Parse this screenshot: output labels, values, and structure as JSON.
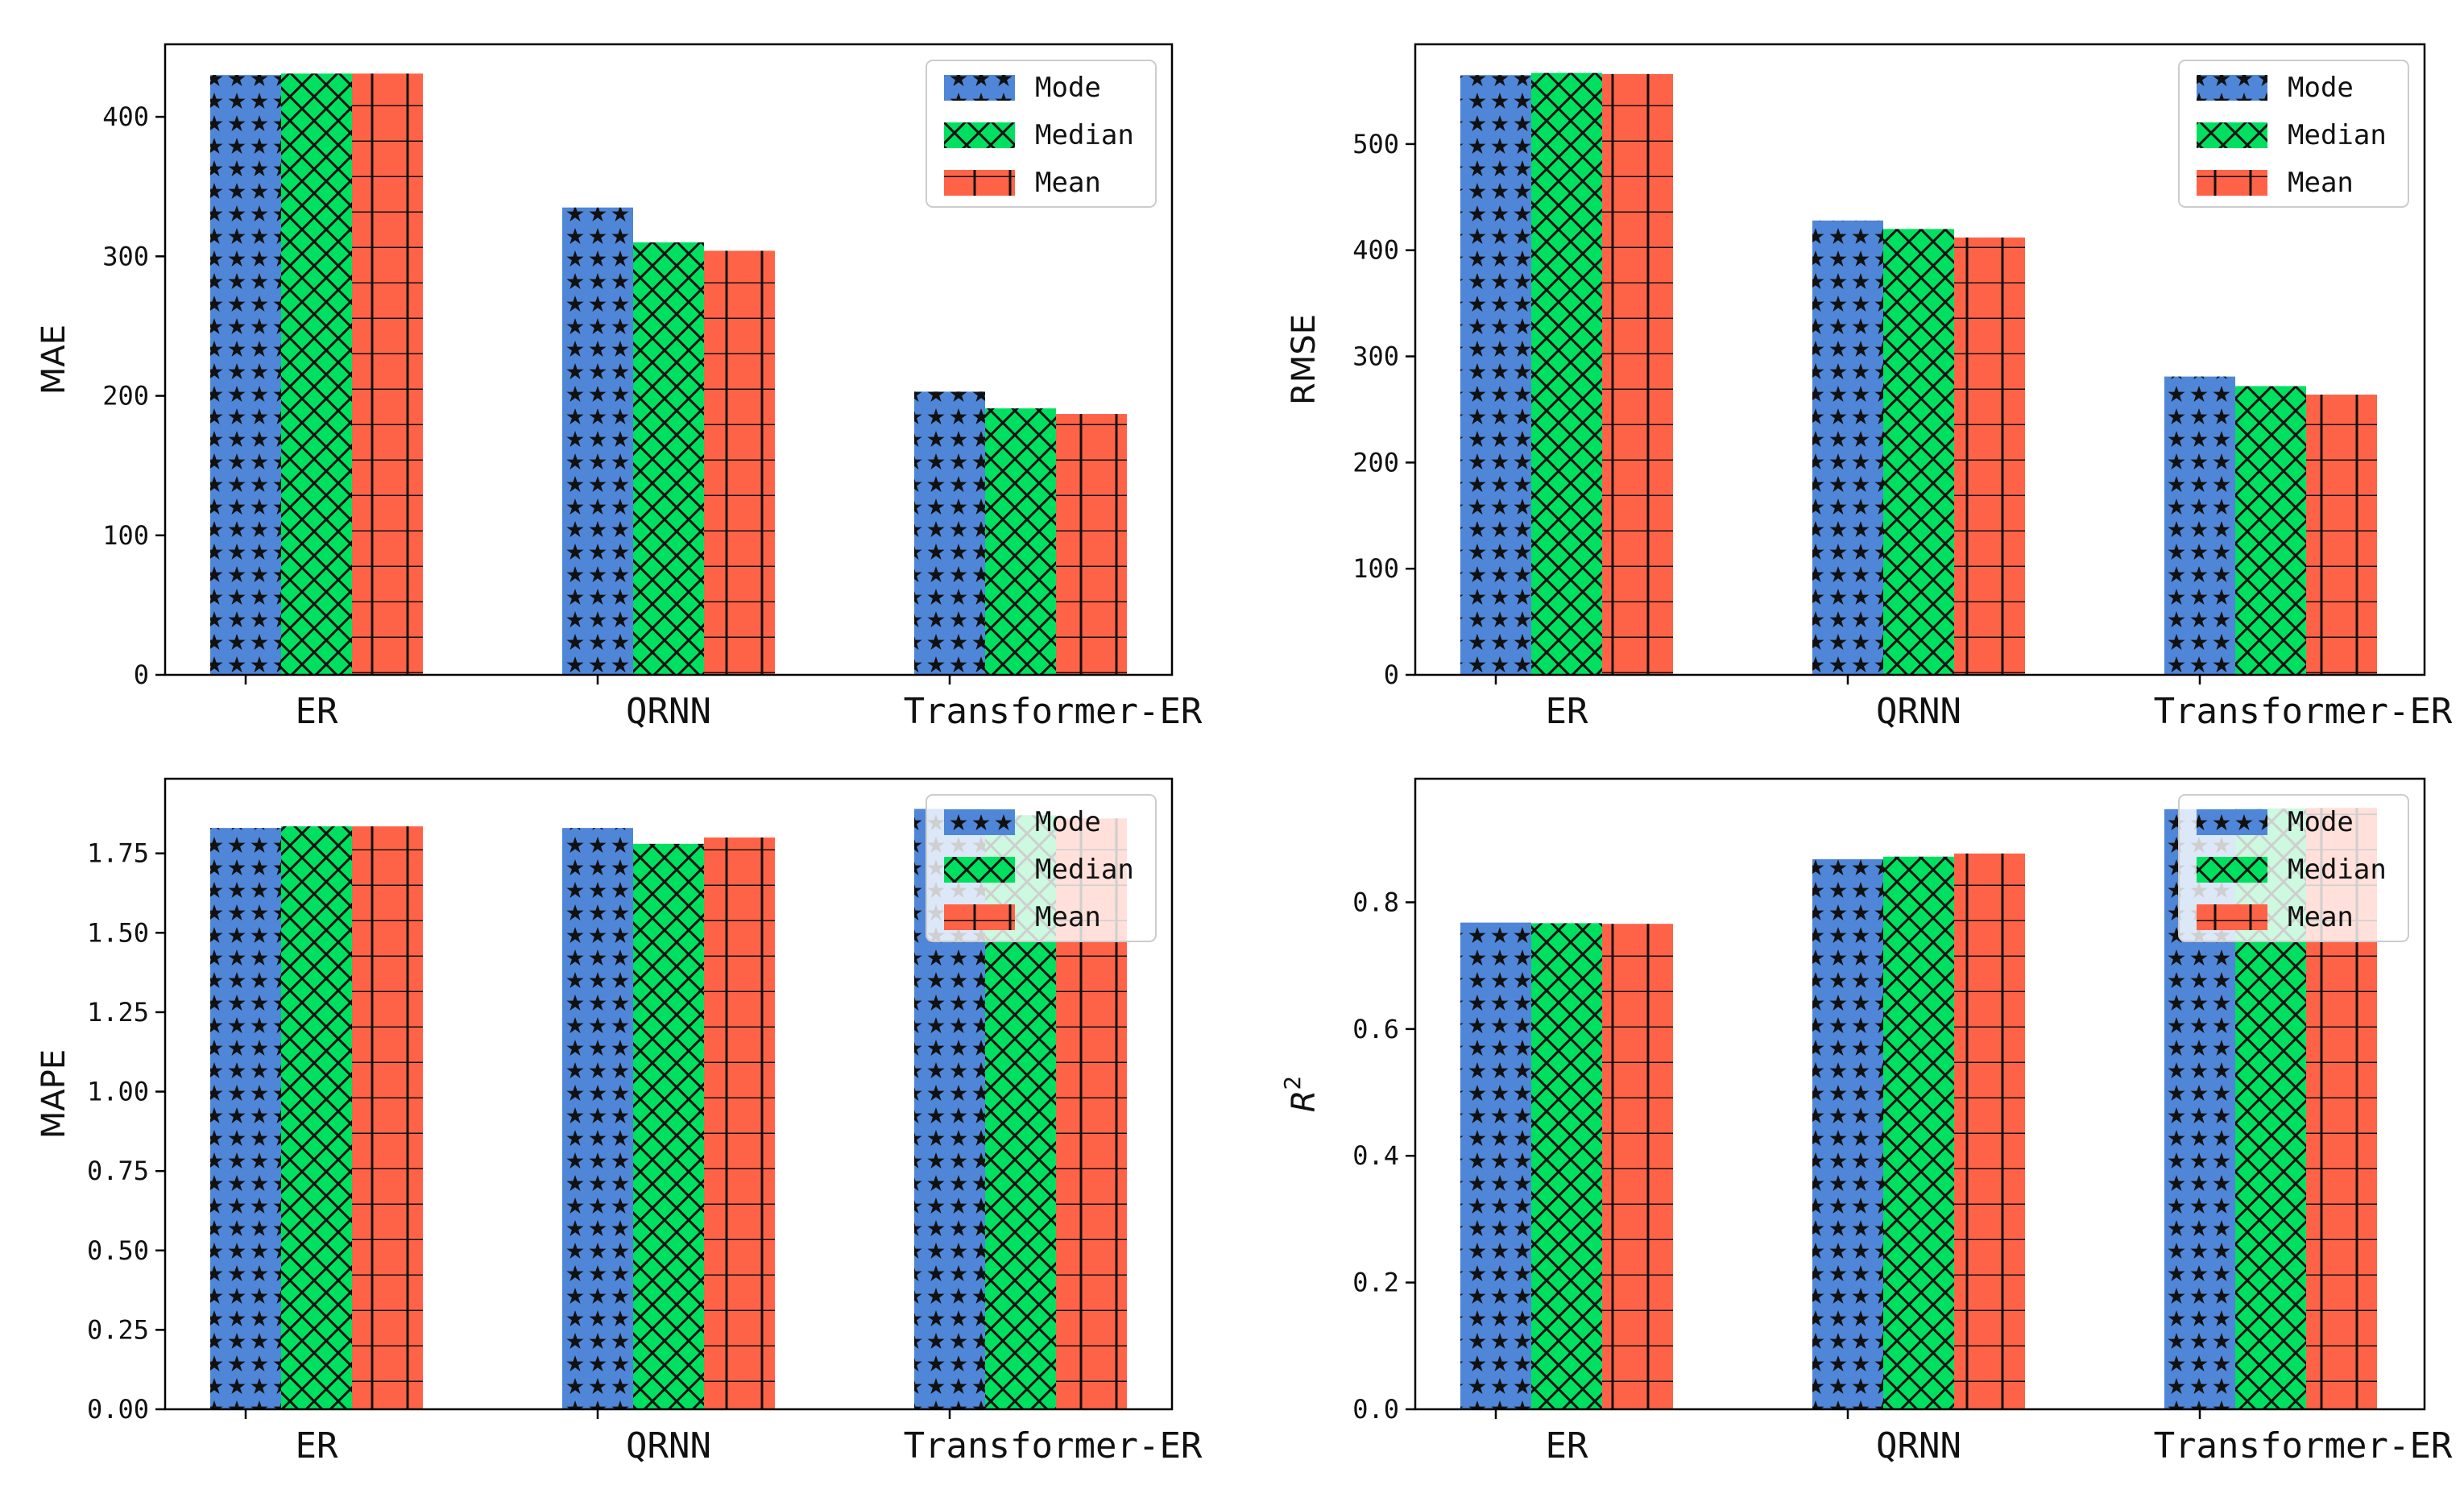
{
  "figure": {
    "colors": {
      "mode": "#4f86d8",
      "median": "#00e060",
      "mean": "#ff6347",
      "hatch": "#111111",
      "axis": "#000000"
    },
    "series_labels": [
      "Mode",
      "Median",
      "Mean"
    ]
  },
  "chart_data": [
    {
      "type": "bar",
      "title": "",
      "xlabel": "",
      "ylabel": "MAE",
      "categories": [
        "ER",
        "QRNN",
        "Transformer-ER"
      ],
      "series": [
        {
          "name": "Mode",
          "values": [
            430,
            335,
            203
          ]
        },
        {
          "name": "Median",
          "values": [
            431,
            310,
            191
          ]
        },
        {
          "name": "Mean",
          "values": [
            431,
            304,
            187
          ]
        }
      ],
      "ylim": [
        0,
        452
      ],
      "yticks": [
        0,
        100,
        200,
        300,
        400
      ],
      "ytick_labels": [
        "0",
        "100",
        "200",
        "300",
        "400"
      ],
      "legend": "top-right"
    },
    {
      "type": "bar",
      "title": "",
      "xlabel": "",
      "ylabel": "RMSE",
      "categories": [
        "ER",
        "QRNN",
        "Transformer-ER"
      ],
      "series": [
        {
          "name": "Mode",
          "values": [
            565,
            428,
            281
          ]
        },
        {
          "name": "Median",
          "values": [
            567,
            420,
            272
          ]
        },
        {
          "name": "Mean",
          "values": [
            566,
            412,
            264
          ]
        }
      ],
      "ylim": [
        0,
        594
      ],
      "yticks": [
        0,
        100,
        200,
        300,
        400,
        500
      ],
      "ytick_labels": [
        "0",
        "100",
        "200",
        "300",
        "400",
        "500"
      ],
      "legend": "top-right"
    },
    {
      "type": "bar",
      "title": "",
      "xlabel": "",
      "ylabel": "MAPE",
      "categories": [
        "ER",
        "QRNN",
        "Transformer-ER"
      ],
      "series": [
        {
          "name": "Mode",
          "values": [
            1.83,
            1.83,
            1.89
          ]
        },
        {
          "name": "Median",
          "values": [
            1.835,
            1.78,
            1.87
          ]
        },
        {
          "name": "Mean",
          "values": [
            1.835,
            1.8,
            1.86
          ]
        }
      ],
      "ylim": [
        0,
        1.985
      ],
      "yticks": [
        0,
        0.25,
        0.5,
        0.75,
        1.0,
        1.25,
        1.5,
        1.75
      ],
      "ytick_labels": [
        "0.00",
        "0.25",
        "0.50",
        "0.75",
        "1.00",
        "1.25",
        "1.50",
        "1.75"
      ],
      "legend": "top-right"
    },
    {
      "type": "bar",
      "title": "",
      "xlabel": "",
      "ylabel": "R",
      "ylabel_superscript": "2",
      "categories": [
        "ER",
        "QRNN",
        "Transformer-ER"
      ],
      "series": [
        {
          "name": "Mode",
          "values": [
            0.768,
            0.868,
            0.947
          ]
        },
        {
          "name": "Median",
          "values": [
            0.767,
            0.872,
            0.948
          ]
        },
        {
          "name": "Mean",
          "values": [
            0.766,
            0.877,
            0.949
          ]
        }
      ],
      "ylim": [
        0,
        0.995
      ],
      "yticks": [
        0,
        0.2,
        0.4,
        0.6,
        0.8
      ],
      "ytick_labels": [
        "0.0",
        "0.2",
        "0.4",
        "0.6",
        "0.8"
      ],
      "legend": "top-right"
    }
  ]
}
